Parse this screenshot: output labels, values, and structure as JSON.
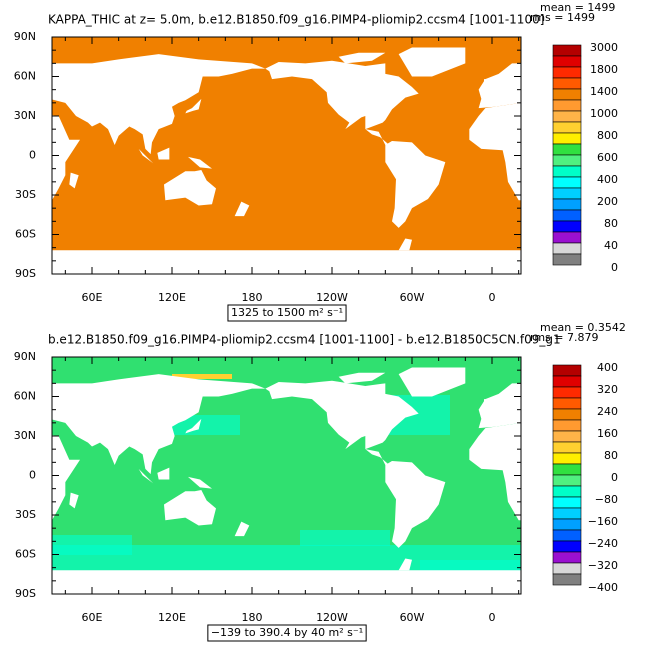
{
  "colorbar_colors": [
    "#b40000",
    "#e00000",
    "#ff2a00",
    "#ff5a00",
    "#f08000",
    "#ff9a30",
    "#ffb448",
    "#ffd030",
    "#ffee00",
    "#30e040",
    "#50f080",
    "#00ffc8",
    "#00ffff",
    "#00d0ff",
    "#00a0ff",
    "#0060ff",
    "#0000ff",
    "#9a10d0",
    "#d8d8d8",
    "#808080"
  ],
  "panels": [
    {
      "title": "KAPPA_THIC at z=    5.0m, b.e12.B1850.f09_g16.PIMP4-pliomip2.ccsm4 [1001-1100]",
      "mean": "mean = 1499",
      "rms": "rms = 1499",
      "ocean_color": "#f08000",
      "lat_labels": [
        "90N",
        "60N",
        "30N",
        "0",
        "30S",
        "60S",
        "90S"
      ],
      "lon_labels": [
        "60E",
        "120E",
        "180",
        "120W",
        "60W",
        "0"
      ],
      "range_label": "1325 to 1500 m² s⁻¹",
      "colorbar_labels": [
        "3000",
        "1800",
        "1400",
        "1000",
        "800",
        "600",
        "400",
        "200",
        "80",
        "40",
        "0"
      ]
    },
    {
      "title": "b.e12.B1850.f09_g16.PIMP4-pliomip2.ccsm4 [1001-1100] - b.e12.B1850C5CN.f09_g1",
      "mean": "mean = 0.3542",
      "rms": "rms = 7.879",
      "ocean_color": "#30e070",
      "lat_labels": [
        "90N",
        "60N",
        "30N",
        "0",
        "30S",
        "60S",
        "90S"
      ],
      "lon_labels": [
        "60E",
        "120E",
        "180",
        "120W",
        "60W",
        "0"
      ],
      "range_label": "−139 to 390.4 by 40 m² s⁻¹",
      "colorbar_labels": [
        "400",
        "320",
        "240",
        "160",
        "80",
        "0",
        "−80",
        "−160",
        "−240",
        "−320",
        "−400"
      ]
    }
  ]
}
